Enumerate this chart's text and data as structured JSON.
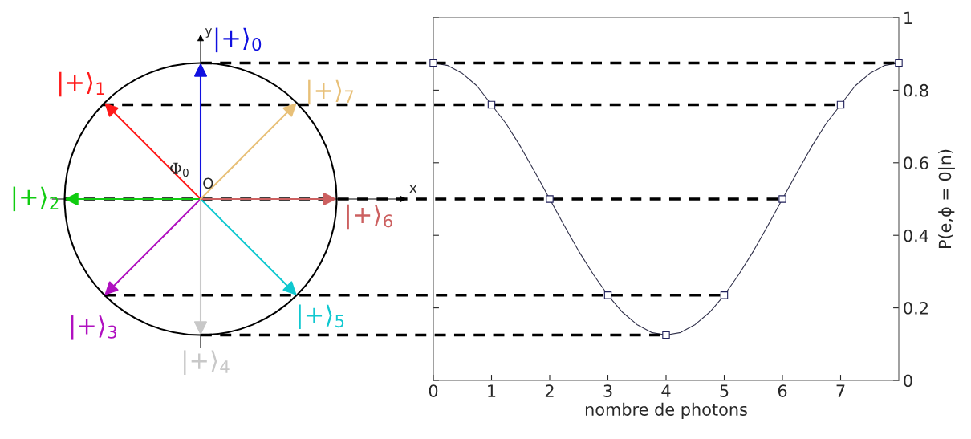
{
  "chart_data": [
    {
      "type": "other",
      "annotations": [
        "|+⟩$_{0}$",
        "|+⟩$_{1}$",
        "|+⟩$_{2}$",
        "|+⟩$_{3}$",
        "|+⟩$_{4}$",
        "|+⟩$_{5}$",
        "|+⟩$_{6}$",
        "|+⟩$_{7}$",
        "x",
        "y",
        "Φ$_{0}$",
        "O"
      ],
      "colors": [
        "#1010e0",
        "#ff1a1a",
        "#10cc10",
        "#b010c0",
        "#c8c8c8",
        "#10c8d0",
        "#cc6060",
        "#e8c078"
      ]
    },
    {
      "type": "line",
      "series": [
        {
          "type": "line",
          "marker": "none",
          "color": "#30304a",
          "x": [
            0,
            0.25,
            0.5,
            0.75,
            1,
            1.25,
            1.5,
            1.75,
            2,
            2.25,
            2.5,
            2.75,
            3,
            3.25,
            3.5,
            3.75,
            4,
            4.25,
            4.5,
            4.75,
            5,
            5.25,
            5.5,
            5.75,
            6,
            6.25,
            6.5,
            6.75,
            7,
            7.25,
            7.5,
            7.75,
            8
          ],
          "values": [
            0.875,
            0.868,
            0.846,
            0.812,
            0.76,
            0.708,
            0.644,
            0.573,
            0.5,
            0.427,
            0.356,
            0.292,
            0.235,
            0.188,
            0.154,
            0.132,
            0.125,
            0.132,
            0.154,
            0.188,
            0.235,
            0.292,
            0.356,
            0.427,
            0.5,
            0.573,
            0.644,
            0.708,
            0.76,
            0.812,
            0.846,
            0.868,
            0.875
          ]
        },
        {
          "type": "scatter",
          "marker": "square",
          "color": "#20205a",
          "x": [
            0,
            1,
            2,
            3,
            4,
            5,
            6,
            7,
            8
          ],
          "values": [
            0.875,
            0.76,
            0.5,
            0.235,
            0.125,
            0.235,
            0.5,
            0.76,
            0.875
          ]
        }
      ],
      "xlabel": "nombre de photons",
      "ylabel": "P(e,ϕ = 0|n)",
      "xlim": [
        0,
        8
      ],
      "xticks": [
        0,
        1,
        2,
        3,
        4,
        5,
        6,
        7
      ],
      "ylim": [
        0,
        1
      ],
      "yticks": [
        0,
        0.2,
        0.4,
        0.6,
        0.8,
        1
      ],
      "grid": false,
      "ref_lines": [
        {
          "axis": "y",
          "value": 0.875,
          "line_style": "dashed",
          "color": "#000000"
        },
        {
          "axis": "y",
          "value": 0.76,
          "line_style": "dashed",
          "color": "#000000"
        },
        {
          "axis": "y",
          "value": 0.5,
          "line_style": "dashed",
          "color": "#000000"
        },
        {
          "axis": "y",
          "value": 0.235,
          "line_style": "dashed",
          "color": "#000000"
        },
        {
          "axis": "y",
          "value": 0.125,
          "line_style": "dashed",
          "color": "#000000"
        }
      ]
    }
  ]
}
